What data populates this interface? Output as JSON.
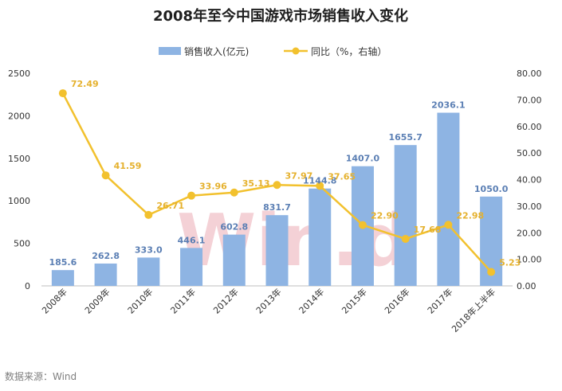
{
  "chart_data": {
    "type": "bar",
    "title": "2008年至今中国游戏市场销售收入变化",
    "categories": [
      "2008年",
      "2009年",
      "2010年",
      "2011年",
      "2012年",
      "2013年",
      "2014年",
      "2015年",
      "2016年",
      "2017年",
      "2018年上半年"
    ],
    "series": [
      {
        "name": "销售收入(亿元)",
        "type": "bar",
        "axis": "left",
        "values": [
          185.6,
          262.8,
          333.0,
          446.1,
          602.8,
          831.7,
          1144.8,
          1407.0,
          1655.7,
          2036.1,
          1050.0
        ],
        "labels": [
          "185.6",
          "262.8",
          "333.0",
          "446.1",
          "602.8",
          "831.7",
          "1144.8",
          "1407.0",
          "1655.7",
          "2036.1",
          "1050.0"
        ]
      },
      {
        "name": "同比（%，右轴）",
        "type": "line",
        "axis": "right",
        "values": [
          72.49,
          41.59,
          26.71,
          33.96,
          35.13,
          37.97,
          37.65,
          22.9,
          17.68,
          22.98,
          5.23
        ],
        "labels": [
          "72.49",
          "41.59",
          "26.71",
          "33.96",
          "35.13",
          "37.97",
          "37.65",
          "22.90",
          "17.68",
          "22.98",
          "5.23"
        ]
      }
    ],
    "ylim": [
      0,
      2500
    ],
    "y_ticks": [
      "0",
      "500",
      "1000",
      "1500",
      "2000",
      "2500"
    ],
    "y2lim": [
      0,
      80
    ],
    "y2_ticks": [
      "0.00",
      "10.00",
      "20.00",
      "30.00",
      "40.00",
      "50.00",
      "60.00",
      "70.00",
      "80.00"
    ],
    "grid": false,
    "legend_position": "top-center",
    "colors": {
      "bar": "#8eb4e3",
      "line": "#f2c12e",
      "bar_label": "#5b7fb4",
      "line_label": "#e5b12d"
    }
  },
  "watermark": "Win.d",
  "source": "数据来源：Wind"
}
